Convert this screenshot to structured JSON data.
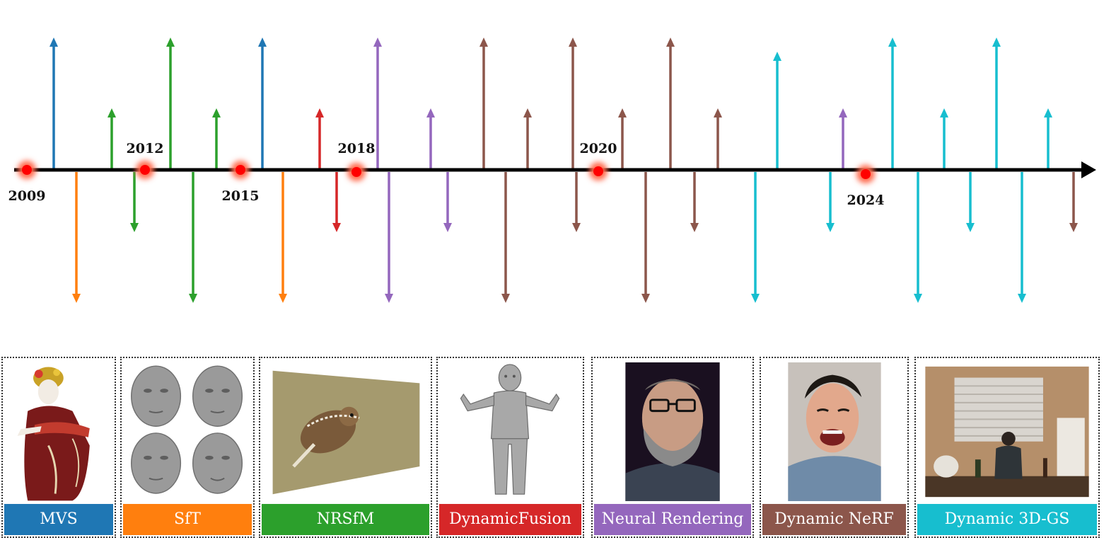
{
  "timeline": {
    "years": [
      {
        "label": "2009",
        "position": "below"
      },
      {
        "label": "2012",
        "position": "above"
      },
      {
        "label": "2015",
        "position": "below"
      },
      {
        "label": "2018",
        "position": "above"
      },
      {
        "label": "2020",
        "position": "above"
      },
      {
        "label": "2024",
        "position": "below"
      }
    ],
    "arrows": [
      {
        "category": "MVS",
        "direction": "up",
        "length": "long"
      },
      {
        "category": "SfT",
        "direction": "down",
        "length": "long"
      },
      {
        "category": "NRSfM",
        "direction": "up",
        "length": "short"
      },
      {
        "category": "NRSfM",
        "direction": "down",
        "length": "short"
      },
      {
        "category": "NRSfM",
        "direction": "up",
        "length": "long"
      },
      {
        "category": "NRSfM",
        "direction": "down",
        "length": "long"
      },
      {
        "category": "NRSfM",
        "direction": "up",
        "length": "short"
      },
      {
        "category": "MVS",
        "direction": "up",
        "length": "long"
      },
      {
        "category": "SfT",
        "direction": "down",
        "length": "long"
      },
      {
        "category": "DynamicFusion",
        "direction": "up",
        "length": "short"
      },
      {
        "category": "DynamicFusion",
        "direction": "down",
        "length": "short"
      },
      {
        "category": "Neural Rendering",
        "direction": "up",
        "length": "long"
      },
      {
        "category": "Neural Rendering",
        "direction": "down",
        "length": "long"
      },
      {
        "category": "Neural Rendering",
        "direction": "up",
        "length": "short"
      },
      {
        "category": "Neural Rendering",
        "direction": "down",
        "length": "short"
      },
      {
        "category": "Dynamic NeRF",
        "direction": "up",
        "length": "long"
      },
      {
        "category": "Dynamic NeRF",
        "direction": "down",
        "length": "long"
      },
      {
        "category": "Dynamic NeRF",
        "direction": "up",
        "length": "short"
      },
      {
        "category": "Dynamic NeRF",
        "direction": "up",
        "length": "long"
      },
      {
        "category": "Dynamic NeRF",
        "direction": "down",
        "length": "short"
      },
      {
        "category": "Dynamic NeRF",
        "direction": "up",
        "length": "short"
      },
      {
        "category": "Dynamic NeRF",
        "direction": "down",
        "length": "long"
      },
      {
        "category": "Dynamic NeRF",
        "direction": "up",
        "length": "long"
      },
      {
        "category": "Dynamic NeRF",
        "direction": "down",
        "length": "short"
      },
      {
        "category": "Dynamic NeRF",
        "direction": "up",
        "length": "short"
      },
      {
        "category": "Dynamic 3D-GS",
        "direction": "down",
        "length": "long"
      },
      {
        "category": "Dynamic 3D-GS",
        "direction": "up",
        "length": "medium"
      },
      {
        "category": "Dynamic 3D-GS",
        "direction": "down",
        "length": "short"
      },
      {
        "category": "Neural Rendering",
        "direction": "up",
        "length": "short"
      },
      {
        "category": "Dynamic 3D-GS",
        "direction": "up",
        "length": "long"
      },
      {
        "category": "Dynamic 3D-GS",
        "direction": "down",
        "length": "long"
      },
      {
        "category": "Dynamic 3D-GS",
        "direction": "up",
        "length": "short"
      },
      {
        "category": "Dynamic 3D-GS",
        "direction": "down",
        "length": "short"
      },
      {
        "category": "Dynamic 3D-GS",
        "direction": "up",
        "length": "long"
      },
      {
        "category": "Dynamic 3D-GS",
        "direction": "down",
        "length": "long"
      },
      {
        "category": "Dynamic 3D-GS",
        "direction": "up",
        "length": "short"
      },
      {
        "category": "Dynamic NeRF",
        "direction": "down",
        "length": "short"
      }
    ]
  },
  "categories": [
    {
      "key": "MVS",
      "label": "MVS",
      "color": "#1f77b4",
      "image": "kimono-figure-image"
    },
    {
      "key": "SfT",
      "label": "SfT",
      "color": "#ff7f0e",
      "image": "face-meshes-image"
    },
    {
      "key": "NRSfM",
      "label": "NRSfM",
      "color": "#2ca02c",
      "image": "bird-reconstruction-image"
    },
    {
      "key": "DynamicFusion",
      "label": "DynamicFusion",
      "color": "#d62728",
      "image": "child-scan-image"
    },
    {
      "key": "Neural Rendering",
      "label": "Neural Rendering",
      "color": "#9467bd",
      "image": "bearded-man-image"
    },
    {
      "key": "Dynamic NeRF",
      "label": "Dynamic NeRF",
      "color": "#8c564b",
      "image": "laughing-man-image"
    },
    {
      "key": "Dynamic 3D-GS",
      "label": "Dynamic 3D-GS",
      "color": "#17becf",
      "image": "kitchen-scene-image"
    }
  ],
  "style": {
    "axis_color": "#000000",
    "marker_color": "#ff0000",
    "marker_glow": "#ff6a4d"
  }
}
